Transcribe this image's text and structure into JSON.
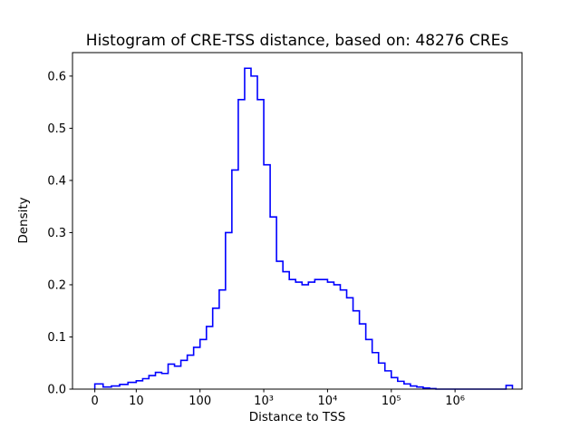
{
  "figure": {
    "background_color": "#ffffff",
    "axis_color": "#000000"
  },
  "chart_data": {
    "type": "histogram",
    "histtype": "step",
    "title": "Histogram of CRE-TSS distance, based on: 48276 CREs",
    "xlabel": "Distance to TSS",
    "ylabel": "Density",
    "x_scale": "symlog",
    "grid": false,
    "legend": null,
    "line_color": "#0000ff",
    "ylim": [
      0,
      0.645
    ],
    "y_ticks": [
      {
        "value": 0.0,
        "label": "0.0"
      },
      {
        "value": 0.1,
        "label": "0.1"
      },
      {
        "value": 0.2,
        "label": "0.2"
      },
      {
        "value": 0.3,
        "label": "0.3"
      },
      {
        "value": 0.4,
        "label": "0.4"
      },
      {
        "value": 0.5,
        "label": "0.5"
      },
      {
        "value": 0.6,
        "label": "0.6"
      }
    ],
    "x_ticks": [
      {
        "value": 0,
        "label": "0"
      },
      {
        "value": 10,
        "label": "10"
      },
      {
        "value": 100,
        "label": "100"
      },
      {
        "value": 1000,
        "label": "10³"
      },
      {
        "value": 10000,
        "label": "10⁴"
      },
      {
        "value": 100000,
        "label": "10⁵"
      },
      {
        "value": 1000000,
        "label": "10⁶"
      }
    ],
    "bin_edges": [
      0,
      2,
      4,
      6,
      8,
      10,
      12.6,
      15.8,
      20,
      25.1,
      31.6,
      39.8,
      50.1,
      63.1,
      79.4,
      100,
      126,
      158,
      200,
      251,
      316,
      398,
      501,
      631,
      794,
      1000,
      1259,
      1585,
      1995,
      2512,
      3162,
      3981,
      5012,
      6310,
      7943,
      10000,
      12589,
      15849,
      19953,
      25119,
      31623,
      39811,
      50119,
      63096,
      79433,
      100000,
      125893,
      158489,
      199526,
      251189,
      316228,
      398107,
      501187,
      630957,
      794328,
      1000000,
      1258925,
      1584893,
      1995262,
      2511886,
      3162278,
      3981072,
      5011872,
      6309573,
      7943282
    ],
    "densities": [
      0.01,
      0.004,
      0.006,
      0.009,
      0.013,
      0.016,
      0.02,
      0.026,
      0.032,
      0.03,
      0.048,
      0.044,
      0.055,
      0.065,
      0.08,
      0.095,
      0.12,
      0.155,
      0.19,
      0.3,
      0.42,
      0.555,
      0.615,
      0.6,
      0.555,
      0.43,
      0.33,
      0.245,
      0.225,
      0.21,
      0.205,
      0.2,
      0.205,
      0.21,
      0.21,
      0.205,
      0.2,
      0.19,
      0.175,
      0.15,
      0.125,
      0.095,
      0.07,
      0.05,
      0.035,
      0.022,
      0.015,
      0.01,
      0.006,
      0.004,
      0.002,
      0.001,
      0,
      0,
      0,
      0,
      0,
      0,
      0,
      0,
      0,
      0,
      0,
      0.007
    ]
  }
}
